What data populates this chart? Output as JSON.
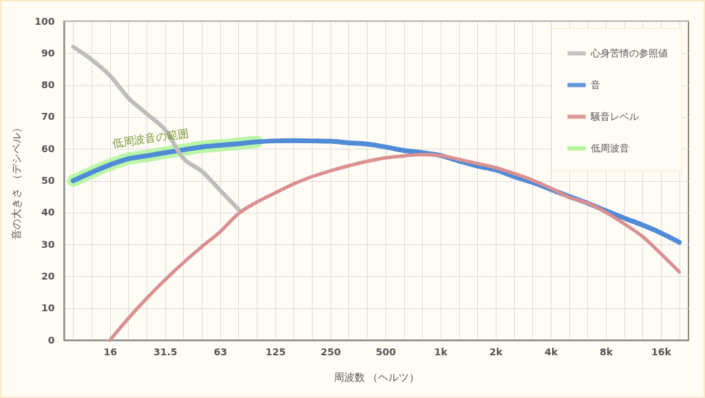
{
  "chart_data": {
    "type": "line",
    "xlabel": "周波数 （ヘルツ）",
    "ylabel": "音の大きさ （デシベル）",
    "categories": [
      null,
      null,
      "16",
      null,
      null,
      "31.5",
      null,
      null,
      "63",
      null,
      null,
      "125",
      null,
      null,
      "250",
      null,
      null,
      "500",
      null,
      null,
      "1k",
      null,
      null,
      "2k",
      null,
      null,
      "4k",
      null,
      null,
      "8k",
      null,
      null,
      "16k",
      null
    ],
    "series": [
      {
        "name": "心身苦情の参照値",
        "color": "#bdbdbd",
        "values": [
          92,
          88,
          83,
          76,
          71,
          66,
          57,
          53,
          47,
          41,
          null,
          null,
          null,
          null,
          null,
          null,
          null,
          null,
          null,
          null,
          null,
          null,
          null,
          null,
          null,
          null,
          null,
          null,
          null,
          null,
          null,
          null,
          null,
          null
        ]
      },
      {
        "name": "音",
        "color": "#4f8bd6",
        "values": [
          50,
          52.6,
          55,
          56.9,
          57.8,
          58.8,
          59.7,
          60.6,
          61.1,
          61.6,
          62.2,
          62.5,
          62.6,
          62.5,
          62.4,
          61.9,
          61.5,
          60.6,
          59.5,
          58.8,
          57.9,
          56.2,
          54.6,
          53.4,
          51.3,
          49.5,
          47.3,
          45.1,
          43,
          40.6,
          38.3,
          36.1,
          33.6,
          30.7
        ]
      },
      {
        "name": "騒音レベル",
        "color": "#d99090",
        "values": [
          null,
          null,
          0,
          6.8,
          13.1,
          18.9,
          24.3,
          29.3,
          34,
          39.7,
          43.3,
          46.2,
          49,
          51.3,
          53.1,
          54.7,
          56.1,
          57.2,
          57.8,
          58.2,
          57.9,
          56.7,
          55.4,
          54.1,
          52.3,
          50.2,
          47.7,
          44.8,
          43,
          40.1,
          36.5,
          32.5,
          27.1,
          21.4
        ]
      },
      {
        "name": "低周波音",
        "color": "#a6f68f",
        "values": [
          50,
          52.6,
          55,
          56.9,
          57.8,
          58.8,
          59.7,
          60.6,
          61.1,
          61.6,
          62.2,
          null,
          null,
          null,
          null,
          null,
          null,
          null,
          null,
          null,
          null,
          null,
          null,
          null,
          null,
          null,
          null,
          null,
          null,
          null,
          null,
          null,
          null,
          null
        ]
      }
    ],
    "ylim": [
      0,
      100
    ],
    "yticks": [
      0,
      10,
      20,
      30,
      40,
      50,
      60,
      70,
      80,
      90,
      100
    ],
    "grid": true,
    "legend": "top right",
    "annotations": [
      "低周波音の範囲"
    ]
  }
}
